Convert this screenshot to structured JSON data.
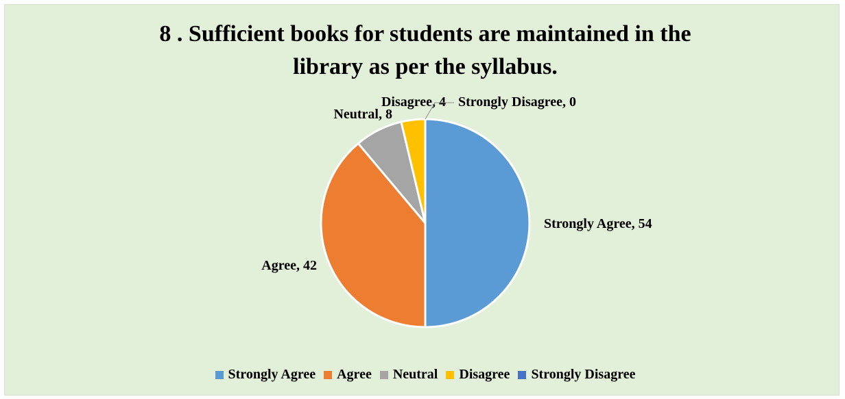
{
  "chart_data": {
    "type": "pie",
    "title_lines": [
      "8 . Sufficient books for students are maintained in the",
      "library as per the syllabus."
    ],
    "slices": [
      {
        "label": "Strongly Agree",
        "value": 54,
        "color": "#5b9bd5",
        "data_label": "Strongly Agree, 54"
      },
      {
        "label": "Agree",
        "value": 42,
        "color": "#ed7d31",
        "data_label": "Agree, 42"
      },
      {
        "label": "Neutral",
        "value": 8,
        "color": "#a5a5a5",
        "data_label": "Neutral, 8"
      },
      {
        "label": "Disagree",
        "value": 4,
        "color": "#ffc000",
        "data_label": "Disagree, 4"
      },
      {
        "label": "Strongly Disagree",
        "value": 0,
        "color": "#4472c4",
        "data_label": "Strongly Disagree, 0"
      }
    ],
    "legend_position": "bottom",
    "background": "#e2efd9"
  }
}
